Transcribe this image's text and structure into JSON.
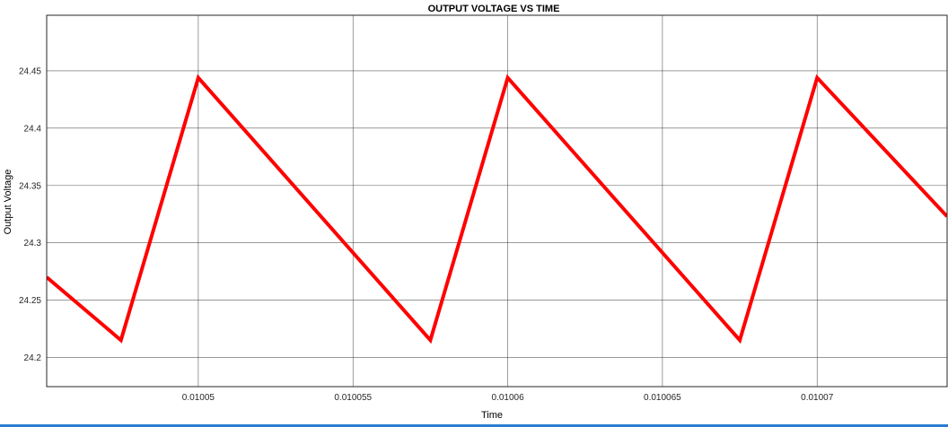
{
  "chart_data": {
    "type": "line",
    "title": "OUTPUT VOLTAGE VS TIME",
    "xlabel": "Time",
    "ylabel": "Output Voltage",
    "xlim": [
      0.0100451,
      0.0100742
    ],
    "ylim": [
      24.1745,
      24.4985
    ],
    "xticks": [
      0.01005,
      0.010055,
      0.01006,
      0.010065,
      0.01007
    ],
    "xtick_labels": [
      "0.01005",
      "0.010055",
      "0.01006",
      "0.010065",
      "0.01007"
    ],
    "yticks": [
      24.2,
      24.25,
      24.3,
      24.35,
      24.4,
      24.45
    ],
    "ytick_labels": [
      "24.2",
      "24.25",
      "24.3",
      "24.35",
      "24.4",
      "24.45"
    ],
    "grid": true,
    "series": [
      {
        "color": "#ff0000",
        "x": [
          0.0100451,
          0.0100475,
          0.01005,
          0.0100575,
          0.01006,
          0.0100675,
          0.01007,
          0.0100742
        ],
        "y": [
          24.27,
          24.215,
          24.444,
          24.215,
          24.444,
          24.215,
          24.444,
          24.323
        ]
      }
    ]
  }
}
